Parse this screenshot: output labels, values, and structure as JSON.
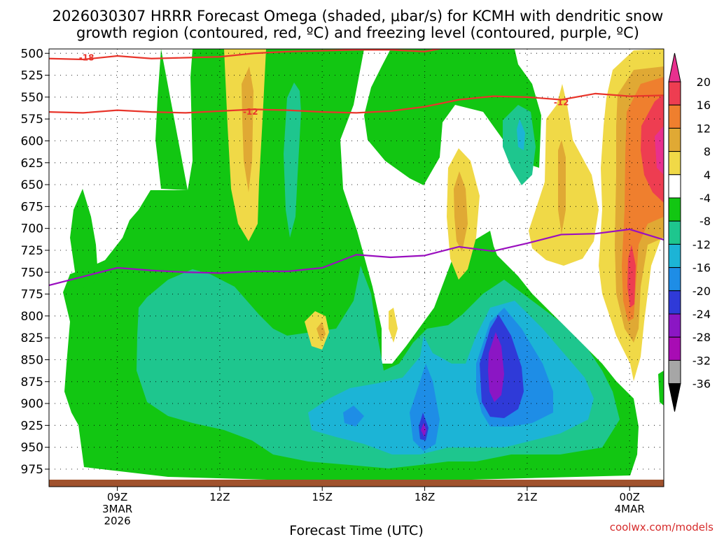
{
  "page": {
    "title_line1": "2026030307 HRRR Forecast Omega (shaded, μbar/s) for KCMH with dendritic snow",
    "title_line2": "growth region (contoured, red, ºC) and freezing level (contoured, purple, ºC)",
    "credit": "coolwx.com/models"
  },
  "chart_data": {
    "type": "heatmap",
    "title": "2026030307 HRRR Forecast Omega (shaded, μbar/s) for KCMH with dendritic snow growth region (contoured, red, ºC) and freezing level (contoured, purple, ºC)",
    "xlabel": "Forecast Time (UTC)",
    "ylabel": "",
    "xlim": [
      7,
      25
    ],
    "ylim": [
      995,
      495
    ],
    "grid": true,
    "x_ticks": [
      {
        "x": 9,
        "label": [
          "09Z",
          "3MAR",
          "2026"
        ]
      },
      {
        "x": 12,
        "label": [
          "12Z"
        ]
      },
      {
        "x": 15,
        "label": [
          "15Z"
        ]
      },
      {
        "x": 18,
        "label": [
          "18Z"
        ]
      },
      {
        "x": 21,
        "label": [
          "21Z"
        ]
      },
      {
        "x": 24,
        "label": [
          "00Z",
          "4MAR"
        ]
      }
    ],
    "y_ticks": [
      500,
      525,
      550,
      575,
      600,
      625,
      650,
      675,
      700,
      725,
      750,
      775,
      800,
      825,
      850,
      875,
      900,
      925,
      950,
      975
    ],
    "colorbar": {
      "units": "μbar/s",
      "labels": [
        "20",
        "16",
        "12",
        "8",
        "4",
        "-4",
        "-8",
        "-12",
        "-16",
        "-20",
        "-24",
        "-28",
        "-32",
        "-36"
      ],
      "levels": [
        {
          "min": 20,
          "max": 24,
          "color": "#e8308e"
        },
        {
          "min": 16,
          "max": 20,
          "color": "#ee3d51"
        },
        {
          "min": 12,
          "max": 16,
          "color": "#ef7f2e"
        },
        {
          "min": 8,
          "max": 12,
          "color": "#e0a934"
        },
        {
          "min": 4,
          "max": 8,
          "color": "#f0d947"
        },
        {
          "min": -4,
          "max": 4,
          "color": "#ffffff"
        },
        {
          "min": -8,
          "max": -4,
          "color": "#12c612"
        },
        {
          "min": -12,
          "max": -8,
          "color": "#1ec68e"
        },
        {
          "min": -16,
          "max": -12,
          "color": "#1cb4d6"
        },
        {
          "min": -20,
          "max": -16,
          "color": "#1e8de6"
        },
        {
          "min": -24,
          "max": -20,
          "color": "#2f3ad8"
        },
        {
          "min": -28,
          "max": -24,
          "color": "#8b16c4"
        },
        {
          "min": -32,
          "max": -28,
          "color": "#a80cb4"
        },
        {
          "min": -36,
          "max": -32,
          "color": "#a6a6a6"
        },
        {
          "min": -40,
          "max": -36,
          "color": "#000000"
        }
      ]
    },
    "ground_color": "#a0522d",
    "omega_features": [
      {
        "name": "strong-ascent-20z-825",
        "value_min": -28,
        "x": [
          20.0
        ],
        "y": [
          800,
          870
        ]
      },
      {
        "name": "ascent-18z-910",
        "value_min": -24,
        "x": [
          18.0
        ],
        "y": [
          905,
          935
        ]
      },
      {
        "name": "descent-00z-upper",
        "value_max": 20,
        "x": [
          24.4,
          25
        ],
        "y": [
          545,
          625
        ]
      },
      {
        "name": "descent-00z-700",
        "value_max": 16,
        "x": [
          24.0
        ],
        "y": [
          700,
          730
        ]
      }
    ],
    "series": [
      {
        "name": "-18",
        "kind": "isotherm",
        "color": "#e8352b",
        "labels": [
          {
            "x": 8.1,
            "y": 505,
            "text": "-18"
          }
        ],
        "x": [
          7,
          8,
          9,
          10,
          11,
          12,
          13,
          14,
          15,
          16,
          17,
          18,
          19,
          20,
          21,
          22,
          22.8
        ],
        "y": [
          506,
          507,
          503,
          506,
          505,
          504,
          500,
          498,
          497,
          496,
          496,
          498,
          491,
          488,
          486,
          484,
          482
        ]
      },
      {
        "name": "-12",
        "kind": "isotherm",
        "color": "#e8352b",
        "labels": [
          {
            "x": 12.9,
            "y": 567,
            "text": "-12"
          },
          {
            "x": 22.0,
            "y": 556,
            "text": "-12"
          }
        ],
        "x": [
          7,
          8,
          9,
          10,
          11,
          12,
          13,
          14,
          15,
          16,
          17,
          18,
          19,
          20,
          21,
          22,
          23,
          24,
          25
        ],
        "y": [
          567,
          568,
          565,
          567,
          568,
          566,
          564,
          565,
          567,
          568,
          566,
          561,
          553,
          549,
          550,
          553,
          546,
          549,
          548
        ]
      },
      {
        "name": "0",
        "kind": "freezing-level",
        "color": "#9a0fbf",
        "x": [
          7,
          8,
          9,
          10,
          11,
          12,
          13,
          14,
          15,
          16,
          17,
          18,
          19,
          20,
          21,
          22,
          23,
          24,
          25
        ],
        "y": [
          765,
          755,
          745,
          748,
          750,
          751,
          749,
          749,
          745,
          730,
          733,
          731,
          721,
          726,
          717,
          707,
          706,
          701,
          713
        ]
      }
    ]
  }
}
